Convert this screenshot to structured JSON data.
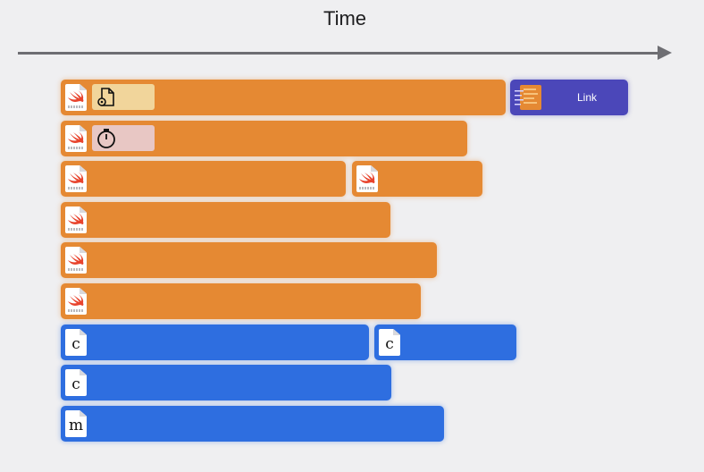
{
  "header": {
    "title": "Time"
  },
  "link": {
    "label": "Link"
  },
  "swift_file": {
    "icon": "swift-file-icon"
  },
  "c_file": {
    "letter": "c"
  },
  "m_file": {
    "letter": "m"
  },
  "colors": {
    "swift": "#e58933",
    "clang": "#2e6ee0",
    "link": "#4b47b9"
  }
}
